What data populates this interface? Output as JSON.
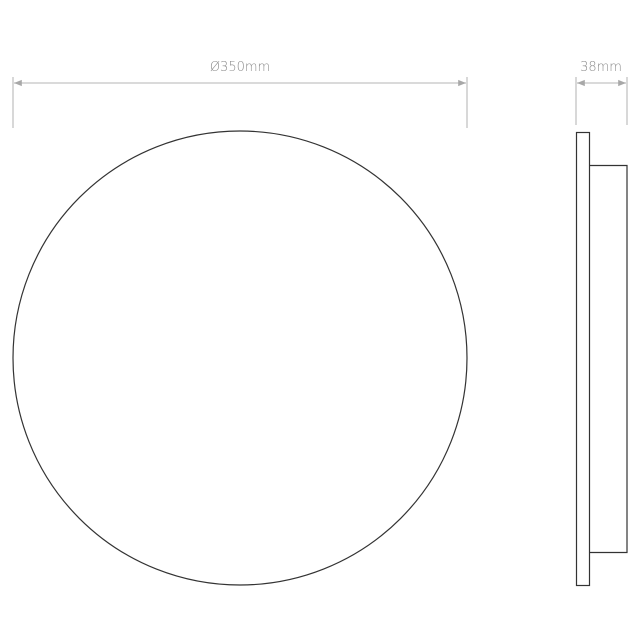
{
  "front_view": {
    "diameter_label": "Ø350mm"
  },
  "side_view": {
    "depth_label": "38mm"
  },
  "colors": {
    "outline": "#333333",
    "dimension": "#c4c4c4",
    "label": "#8a8a8a"
  }
}
